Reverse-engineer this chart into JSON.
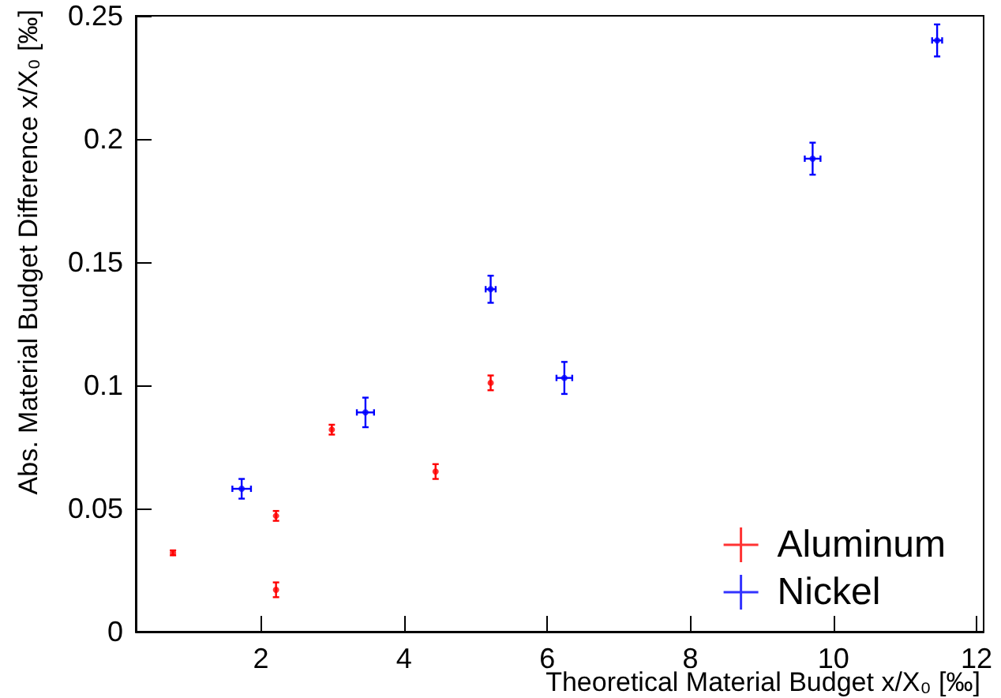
{
  "chart_data": {
    "type": "scatter",
    "xlabel": "Theoretical Material Budget x/X₀ [‰]",
    "ylabel": "Abs. Material Budget Difference x/X₀ [‰]",
    "xlim": [
      0.25,
      12.1
    ],
    "xticks": [
      2,
      4,
      6,
      8,
      10,
      12
    ],
    "ylim": [
      0,
      0.25
    ],
    "yticks": [
      0,
      0.05,
      0.1,
      0.15,
      0.2,
      0.25
    ],
    "grid": false,
    "legend": "bottom right",
    "series": [
      {
        "name": "Aluminum",
        "color": "#ff0000",
        "x": [
          0.77,
          2.21,
          2.21,
          2.99,
          4.44,
          5.21
        ],
        "values": [
          0.032,
          0.047,
          0.017,
          0.082,
          0.065,
          0.101
        ],
        "errors": [
          0.001,
          0.002,
          0.003,
          0.002,
          0.003,
          0.003
        ]
      },
      {
        "name": "Nickel",
        "color": "#0000ff",
        "x": [
          1.73,
          3.46,
          5.21,
          6.24,
          9.71,
          11.45
        ],
        "values": [
          0.058,
          0.089,
          0.139,
          0.103,
          0.192,
          0.24
        ],
        "errors": [
          0.004,
          0.006,
          0.0055,
          0.0065,
          0.0065,
          0.0065
        ],
        "xerrors": [
          0.13,
          0.12,
          0.07,
          0.11,
          0.11,
          0.07
        ]
      }
    ]
  }
}
